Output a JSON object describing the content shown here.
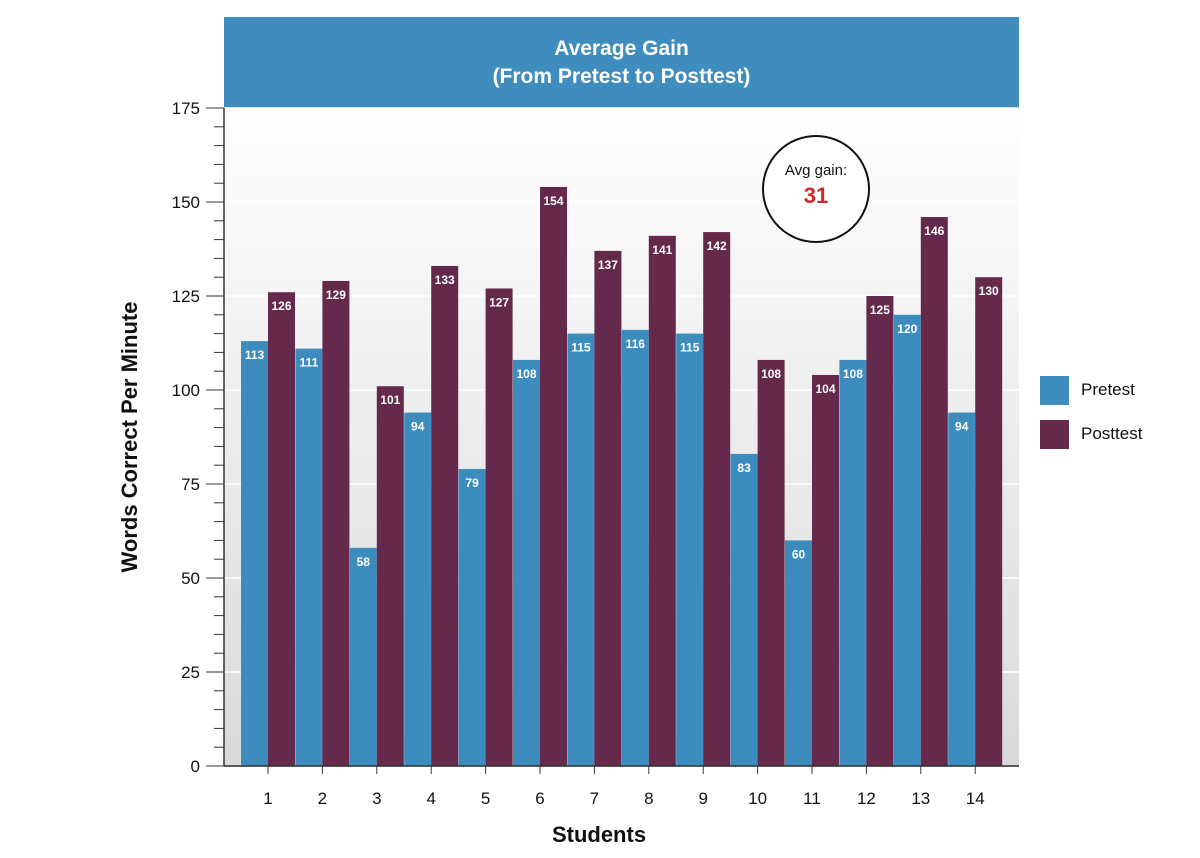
{
  "chart_data": {
    "type": "bar",
    "title": "Average Gain",
    "subtitle": "(From Pretest to Posttest)",
    "xlabel": "Students",
    "ylabel": "Words Correct Per Minute",
    "categories": [
      "1",
      "2",
      "3",
      "4",
      "5",
      "6",
      "7",
      "8",
      "9",
      "10",
      "11",
      "12",
      "13",
      "14"
    ],
    "series": [
      {
        "name": "Pretest",
        "color": "#3d8cbe",
        "values": [
          113,
          111,
          58,
          94,
          79,
          108,
          115,
          116,
          115,
          83,
          60,
          108,
          120,
          94
        ]
      },
      {
        "name": "Posttest",
        "color": "#65294b",
        "values": [
          126,
          129,
          101,
          133,
          127,
          154,
          137,
          141,
          142,
          108,
          104,
          125,
          146,
          130
        ]
      }
    ],
    "ylim": [
      0,
      175
    ],
    "yticks": [
      0,
      25,
      50,
      75,
      100,
      125,
      150,
      175
    ],
    "legend_position": "right",
    "grid": true,
    "annotation": {
      "label": "Avg gain:",
      "value": "31",
      "color": "#d0282c"
    }
  }
}
